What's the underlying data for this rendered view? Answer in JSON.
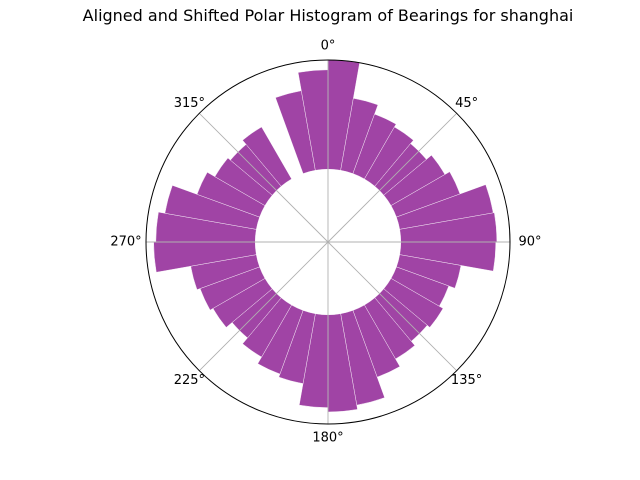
{
  "chart_data": {
    "type": "bar",
    "subtype": "polar-histogram",
    "title": "Aligned and Shifted Polar Histogram of Bearings for shanghai",
    "theta_direction": "clockwise",
    "theta_zero": "top",
    "bin_width_deg": 10,
    "bar_color": "#9b3aa0",
    "bar_edge_color": "#ffffff",
    "grid": true,
    "angle_tick_labels": [
      "0°",
      "45°",
      "90°",
      "135°",
      "180°",
      "225°",
      "270°",
      "315°"
    ],
    "angle_tick_values_deg": [
      0,
      45,
      90,
      135,
      180,
      225,
      270,
      315
    ],
    "r_outer": 1.0,
    "r_inner_hole": 0.4,
    "bins_center_deg": [
      5,
      15,
      25,
      35,
      45,
      55,
      65,
      75,
      85,
      95,
      105,
      115,
      125,
      135,
      145,
      155,
      165,
      175,
      185,
      195,
      205,
      215,
      225,
      235,
      245,
      255,
      265,
      275,
      285,
      295,
      305,
      315,
      325,
      345,
      355
    ],
    "values": [
      1.0,
      0.67,
      0.58,
      0.55,
      0.51,
      0.57,
      0.62,
      0.87,
      0.88,
      0.87,
      0.57,
      0.51,
      0.55,
      0.52,
      0.57,
      0.65,
      0.85,
      0.89,
      0.85,
      0.65,
      0.62,
      0.55,
      0.48,
      0.55,
      0.58,
      0.61,
      0.93,
      0.91,
      0.85,
      0.61,
      0.53,
      0.5,
      0.55,
      0.74,
      0.91
    ]
  }
}
